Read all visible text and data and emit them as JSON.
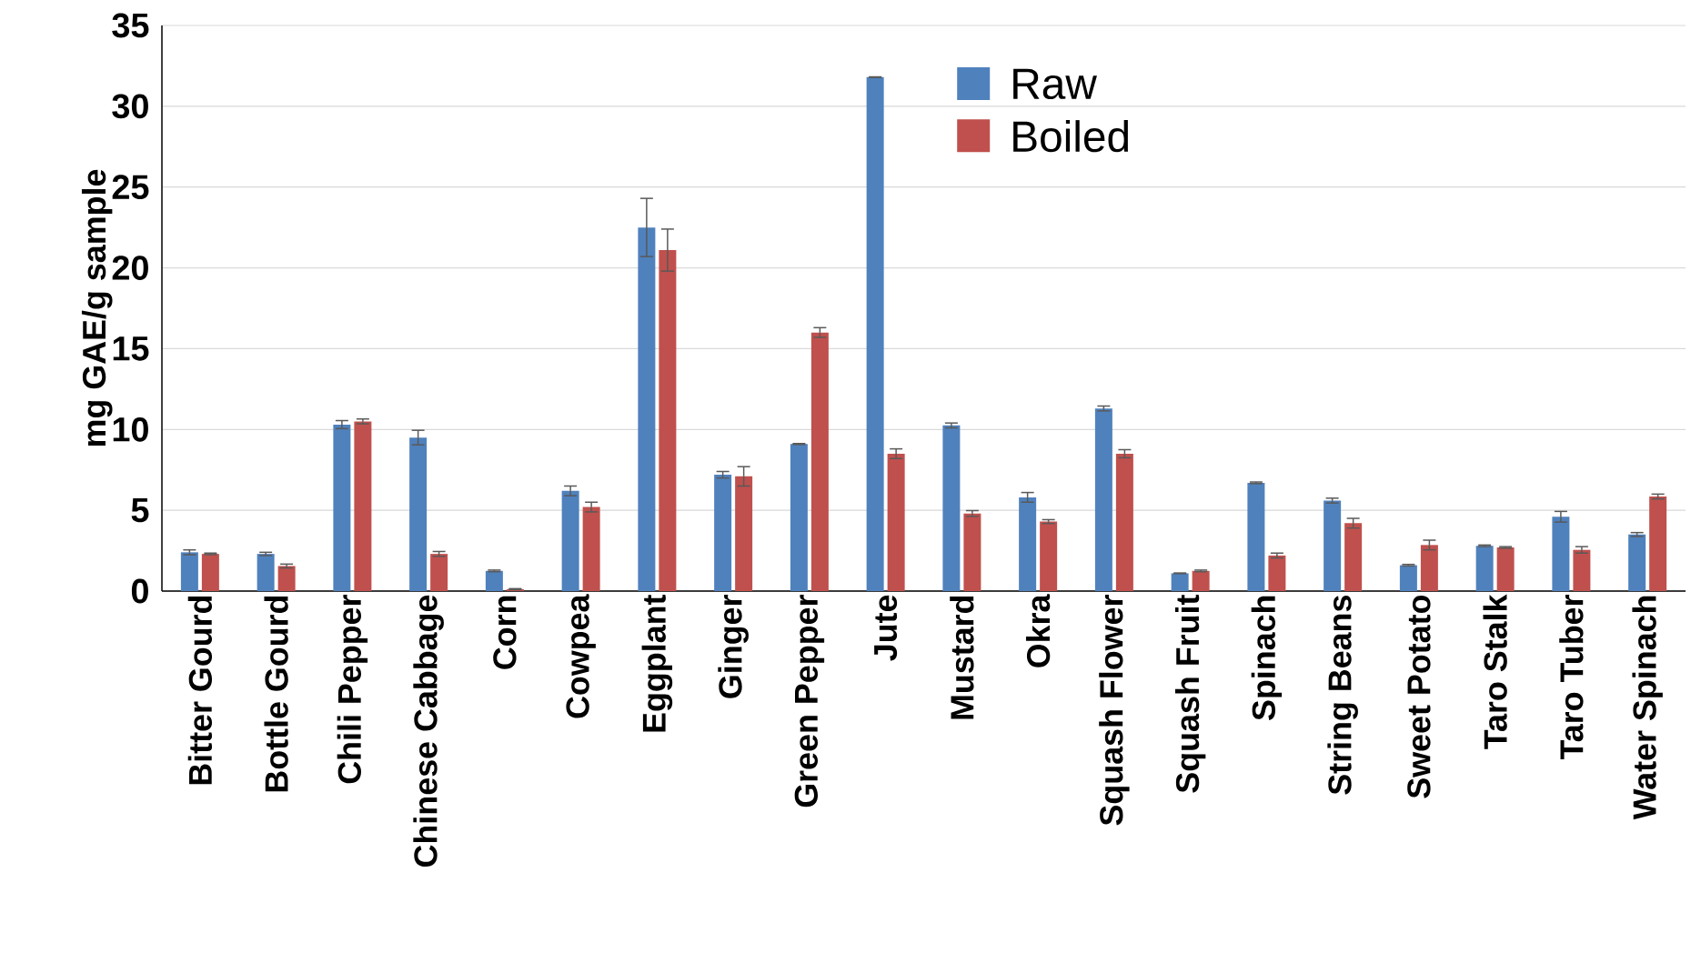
{
  "chart_data": {
    "type": "bar",
    "ylabel": "mg GAE/g sample",
    "categories": [
      "Bitter Gourd",
      "Bottle Gourd",
      "Chili Pepper",
      "Chinese Cabbage",
      "Corn",
      "Cowpea",
      "Eggplant",
      "Ginger",
      "Green Pepper",
      "Jute",
      "Mustard",
      "Okra",
      "Squash Flower",
      "Squash Fruit",
      "Spinach",
      "String Beans",
      "Sweet Potato",
      "Taro Stalk",
      "Taro Tuber",
      "Water Spinach"
    ],
    "series": [
      {
        "name": "Raw",
        "color": "#4f81bd",
        "values": [
          2.4,
          2.3,
          10.3,
          9.5,
          1.25,
          6.2,
          22.5,
          7.2,
          9.1,
          31.8,
          10.25,
          5.8,
          11.3,
          1.1,
          6.7,
          5.6,
          1.6,
          2.8,
          4.6,
          3.5
        ],
        "errors": [
          0.15,
          0.1,
          0.25,
          0.45,
          0.05,
          0.3,
          1.8,
          0.2,
          0.03,
          0.02,
          0.15,
          0.3,
          0.15,
          0.02,
          0.05,
          0.15,
          0.05,
          0.05,
          0.33,
          0.12
        ]
      },
      {
        "name": "Boiled",
        "color": "#c0504d",
        "values": [
          2.3,
          1.55,
          10.5,
          2.3,
          0.12,
          5.2,
          21.1,
          7.1,
          16.0,
          8.5,
          4.8,
          4.3,
          8.5,
          1.25,
          2.2,
          4.2,
          2.85,
          2.7,
          2.55,
          5.85
        ],
        "errors": [
          0.05,
          0.12,
          0.15,
          0.15,
          0.03,
          0.3,
          1.3,
          0.6,
          0.3,
          0.3,
          0.18,
          0.12,
          0.25,
          0.05,
          0.15,
          0.3,
          0.3,
          0.05,
          0.2,
          0.15
        ]
      }
    ],
    "ylim": [
      0,
      35
    ],
    "yticks": [
      0,
      5,
      10,
      15,
      20,
      25,
      30,
      35
    ],
    "grid": "y",
    "legend": "top right"
  }
}
